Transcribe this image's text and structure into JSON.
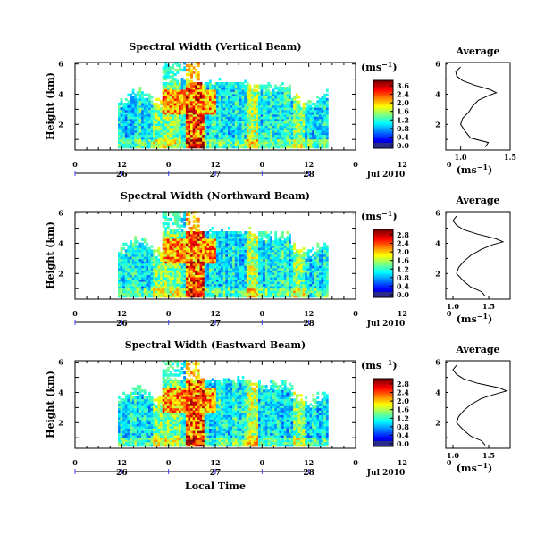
{
  "figure": {
    "bottom_xlabel": "Local Time",
    "month_label": "Jul 2010",
    "colorbar_unit": "(ms",
    "colorbar_unit_exp": "−1",
    "colorbar_unit_close": ")",
    "profile_title": "Average",
    "time_ticks": [
      "0",
      "12",
      "0",
      "12",
      "0",
      "12",
      "0",
      "12",
      "0"
    ],
    "date_labels": [
      "26",
      "27",
      "28"
    ],
    "height_ticks": [
      "6",
      "4",
      "2"
    ],
    "colorbar_ticks": [
      "3.6",
      "2.4",
      "2.0",
      "1.6",
      "1.2",
      "0.8",
      "0.4",
      "0.0"
    ]
  },
  "chart_data": [
    {
      "type": "heatmap",
      "title": "Spectral Width (Vertical Beam)",
      "xlabel": "",
      "ylabel": "Height (km)",
      "xlim_hours": [
        0,
        72
      ],
      "ylim_km": [
        0.3,
        6.1
      ],
      "colorbar": {
        "label": "(ms-1)",
        "range": [
          0.0,
          3.6
        ],
        "colormap": "jet"
      },
      "profile": {
        "title": "Average",
        "xlabel": "(ms-1)",
        "xticks": [
          "1.0",
          "1.5"
        ],
        "xlim": [
          0.85,
          1.5
        ],
        "height_km": [
          0.5,
          0.8,
          1.1,
          1.5,
          2.0,
          2.4,
          2.8,
          3.2,
          3.6,
          3.9,
          4.1,
          4.3,
          4.6,
          4.9,
          5.2,
          5.5,
          5.8
        ],
        "value": [
          1.25,
          1.28,
          1.1,
          1.05,
          1.0,
          1.02,
          1.08,
          1.12,
          1.18,
          1.28,
          1.36,
          1.3,
          1.14,
          1.02,
          0.96,
          0.95,
          1.0
        ]
      }
    },
    {
      "type": "heatmap",
      "title": "Spectral Width (Northward Beam)",
      "xlabel": "",
      "ylabel": "Height (km)",
      "xlim_hours": [
        0,
        72
      ],
      "ylim_km": [
        0.3,
        6.1
      ],
      "colorbar": {
        "label": "(ms-1)",
        "range": [
          0.0,
          2.8
        ],
        "colormap": "jet"
      },
      "profile": {
        "title": "Average",
        "xlabel": "(ms-1)",
        "xticks": [
          "1.0",
          "1.5"
        ],
        "xlim": [
          0.9,
          1.8
        ],
        "height_km": [
          0.5,
          0.8,
          1.1,
          1.5,
          2.0,
          2.4,
          2.8,
          3.2,
          3.6,
          3.9,
          4.1,
          4.3,
          4.6,
          4.9,
          5.2,
          5.5,
          5.8
        ],
        "value": [
          1.45,
          1.4,
          1.25,
          1.15,
          1.05,
          1.08,
          1.15,
          1.25,
          1.4,
          1.55,
          1.7,
          1.6,
          1.35,
          1.15,
          1.05,
          1.0,
          1.05
        ]
      }
    },
    {
      "type": "heatmap",
      "title": "Spectral Width (Eastward Beam)",
      "xlabel": "Local Time",
      "ylabel": "Height (km)",
      "xlim_hours": [
        0,
        72
      ],
      "ylim_km": [
        0.3,
        6.1
      ],
      "colorbar": {
        "label": "(ms-1)",
        "range": [
          0.0,
          2.8
        ],
        "colormap": "jet"
      },
      "profile": {
        "title": "Average",
        "xlabel": "(ms-1)",
        "xticks": [
          "1.0",
          "1.5"
        ],
        "xlim": [
          0.9,
          1.8
        ],
        "height_km": [
          0.5,
          0.8,
          1.1,
          1.5,
          2.0,
          2.4,
          2.8,
          3.2,
          3.6,
          3.9,
          4.1,
          4.3,
          4.6,
          4.9,
          5.2,
          5.5,
          5.8
        ],
        "value": [
          1.45,
          1.4,
          1.25,
          1.15,
          1.05,
          1.08,
          1.15,
          1.25,
          1.4,
          1.6,
          1.75,
          1.65,
          1.35,
          1.15,
          1.05,
          1.0,
          1.05
        ]
      }
    }
  ]
}
